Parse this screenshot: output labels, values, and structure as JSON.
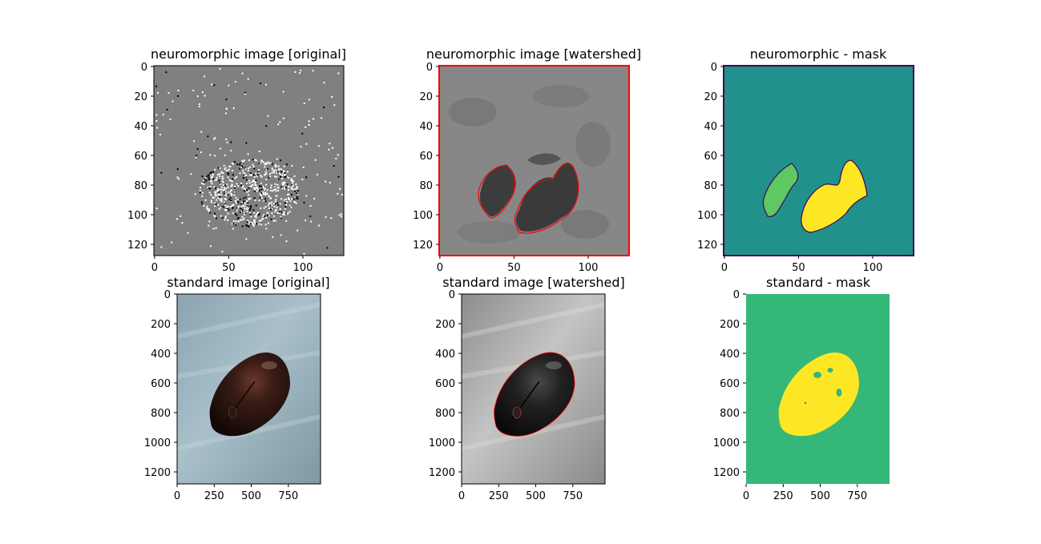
{
  "figure": {
    "panels": [
      {
        "title": "neuromorphic image [original]",
        "x_ticks": [
          "0",
          "50",
          "100"
        ],
        "y_ticks": [
          "0",
          "20",
          "40",
          "60",
          "80",
          "100",
          "120"
        ]
      },
      {
        "title": "neuromorphic image [watershed]",
        "x_ticks": [
          "0",
          "50",
          "100"
        ],
        "y_ticks": [
          "0",
          "20",
          "40",
          "60",
          "80",
          "100",
          "120"
        ]
      },
      {
        "title": "neuromorphic - mask",
        "x_ticks": [
          "0",
          "50",
          "100"
        ],
        "y_ticks": [
          "0",
          "20",
          "40",
          "60",
          "80",
          "100",
          "120"
        ]
      },
      {
        "title": "standard image [original]",
        "x_ticks": [
          "0",
          "250",
          "500",
          "750"
        ],
        "y_ticks": [
          "0",
          "200",
          "400",
          "600",
          "800",
          "1000",
          "1200"
        ]
      },
      {
        "title": "standard image [watershed]",
        "x_ticks": [
          "0",
          "250",
          "500",
          "750"
        ],
        "y_ticks": [
          "0",
          "200",
          "400",
          "600",
          "800",
          "1000",
          "1200"
        ]
      },
      {
        "title": "standard - mask",
        "x_ticks": [
          "0",
          "250",
          "500",
          "750"
        ],
        "y_ticks": [
          "0",
          "200",
          "400",
          "600",
          "800",
          "1000",
          "1200"
        ]
      }
    ]
  },
  "colors": {
    "neuro_gray": "#808080",
    "watershed_red": "#ff0000",
    "mask_teal": "#21918c",
    "mask_green": "#5ec962",
    "mask_yellow": "#fde725",
    "mask_dark": "#440154",
    "std_mask_green": "#35b779"
  }
}
